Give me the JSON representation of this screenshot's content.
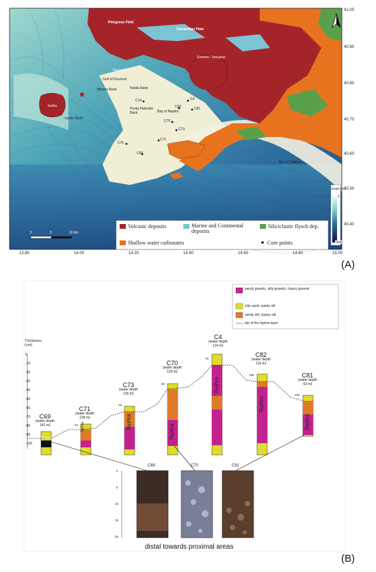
{
  "panel_a": {
    "letter": "(A)",
    "lat_labels": [
      "41.00",
      "40.90",
      "40.80",
      "40.70",
      "40.60",
      "40.50",
      "40.40"
    ],
    "lon_labels": [
      "13.80",
      "14.00",
      "14.20",
      "14.40",
      "14.60",
      "14.80",
      "15.00"
    ],
    "places": {
      "phlegrean": "Phlegrean Field",
      "campanian": "Campanian Plain",
      "somma": "Somma - Vesuvius",
      "pozzuoli": "Pozzuoli",
      "gulf_pozzuoli": "Gulf of Pozzuoli",
      "miseno": "Miseno Bank",
      "nisida": "Nisida Bank",
      "ischia": "Ischia",
      "ischia_bank": "Ischia Bank",
      "pentapalumbo": "Penta Palumbo Bank",
      "bay_naples": "Bay of Naples",
      "bay_salerno": "Bay of Salerno"
    },
    "cores": [
      "C14",
      "C82",
      "C81",
      "C4",
      "C70",
      "C73",
      "C71",
      "C69",
      "C70"
    ],
    "depth_title": "Depth [m]",
    "depth_max": "0",
    "depth_min": "-3000",
    "scale": [
      "0",
      "5",
      "10 km"
    ],
    "legend": {
      "volcanic": "Volcanic deposits",
      "marine": "Marine and Continental deposits",
      "flysch": "Siliciclastic flysch dep.",
      "carbonates": "Shallow water carbonates",
      "core_points": "Core points"
    },
    "colors": {
      "volcanic": "#a5242a",
      "marine": "#7cc3d6",
      "flysch": "#5aa04a",
      "carbonates": "#e8731e",
      "sea_deep": "#1b3f7a",
      "sea_shallow": "#8fd0c8",
      "shelf": "#f3f0dc"
    }
  },
  "panel_b": {
    "letter": "(B)",
    "thickness_label": "Thickness (cm)",
    "thickness_ticks": [
      "0",
      "-10",
      "-20",
      "-30",
      "-40",
      "-50",
      "-60",
      "-70",
      "-80",
      "-90",
      "-100"
    ],
    "legend": {
      "gravels": "sandy gravels, silty gravels, clayey gravels",
      "silty_sand": "silty sand; sandy silt",
      "sandy_silt": "sandy silt; clayey silt",
      "top_tephra": "top of the tephra layer"
    },
    "colors": {
      "gravels": "#d4249a",
      "silty_sand": "#dede2a",
      "sandy_silt": "#e07a2a"
    },
    "tephra_word": "Tephra",
    "cores": [
      {
        "name": "C69",
        "sub": "(water depth",
        "depth": "141 m)",
        "mark": ""
      },
      {
        "name": "C71",
        "sub": "(water depth",
        "depth": "128 m)",
        "mark": "34"
      },
      {
        "name": "C73",
        "sub": "(water depth",
        "depth": "116 m)",
        "mark": "78"
      },
      {
        "name": "C70",
        "sub": "(water depth",
        "depth": "129 m)",
        "mark": "83"
      },
      {
        "name": "C4",
        "sub": "(water depth",
        "depth": "114 m)",
        "mark": "79"
      },
      {
        "name": "C82",
        "sub": "(water depth",
        "depth": "110 m)",
        "mark": "195"
      },
      {
        "name": "C81",
        "sub": "(water depth",
        "depth": "63 m)",
        "mark": "155"
      }
    ],
    "photos": {
      "labels": [
        "C69",
        "C70",
        "C81"
      ],
      "scale": [
        "0",
        "5",
        "10",
        "15",
        "20"
      ]
    },
    "caption": "distal towards proximal areas"
  }
}
